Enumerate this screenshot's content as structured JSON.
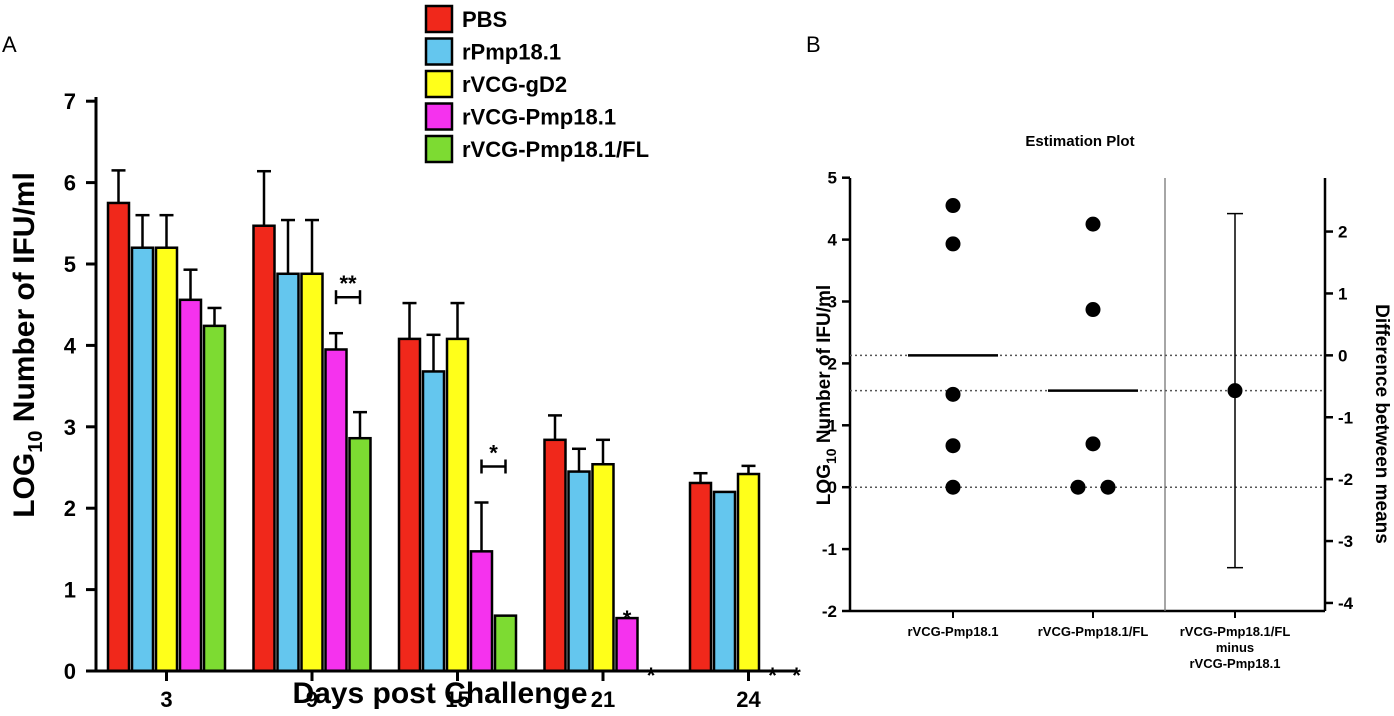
{
  "panel_labels": {
    "a": "A",
    "b": "B"
  },
  "colors": {
    "PBS": "#f0281b",
    "rPmp18.1": "#64c6ee",
    "rVCG-gD2": "#ffff1a",
    "rVCG-Pmp18.1": "#f532ee",
    "rVCG-Pmp18.1/FL": "#7ddb32"
  },
  "chart_data": [
    {
      "type": "bar",
      "title": "",
      "xlabel": "Days post Challenge",
      "ylabel_prefix": "LOG",
      "ylabel_subscript": "10",
      "ylabel_suffix": " Number of IFU/ml",
      "ylim": [
        0,
        7
      ],
      "yticks": [
        "0",
        "1",
        "2",
        "3",
        "4",
        "5",
        "6",
        "7"
      ],
      "categories": [
        "3",
        "9",
        "15",
        "21",
        "24"
      ],
      "legend": [
        "PBS",
        "rPmp18.1",
        "rVCG-gD2",
        "rVCG-Pmp18.1",
        "rVCG-Pmp18.1/FL"
      ],
      "series": [
        {
          "name": "PBS",
          "values": [
            5.75,
            5.47,
            4.08,
            2.84,
            2.31
          ],
          "errors": [
            0.4,
            0.67,
            0.44,
            0.3,
            0.12
          ]
        },
        {
          "name": "rPmp18.1",
          "values": [
            5.2,
            4.88,
            3.68,
            2.45,
            2.2
          ],
          "errors": [
            0.4,
            0.66,
            0.45,
            0.28,
            0
          ]
        },
        {
          "name": "rVCG-gD2",
          "values": [
            5.2,
            4.88,
            4.08,
            2.54,
            2.42
          ],
          "errors": [
            0.4,
            0.66,
            0.44,
            0.3,
            0.1
          ]
        },
        {
          "name": "rVCG-Pmp18.1",
          "values": [
            4.56,
            3.95,
            1.47,
            0.65,
            0
          ],
          "errors": [
            0.37,
            0.2,
            0.6,
            0,
            0
          ]
        },
        {
          "name": "rVCG-Pmp18.1/FL",
          "values": [
            4.24,
            2.86,
            0.68,
            0,
            0
          ],
          "errors": [
            0.22,
            0.32,
            0,
            0,
            0
          ]
        }
      ],
      "annotations": [
        {
          "text": "**",
          "category": "9",
          "bracket": true
        },
        {
          "text": "*",
          "category": "15",
          "bracket": true
        },
        {
          "text": "*",
          "category": "21",
          "series": "rVCG-Pmp18.1"
        },
        {
          "text": "*",
          "category": "21",
          "series": "rVCG-Pmp18.1/FL"
        },
        {
          "text": "*",
          "category": "24",
          "series": "rVCG-Pmp18.1"
        },
        {
          "text": "*",
          "category": "24",
          "series": "rVCG-Pmp18.1/FL"
        }
      ]
    },
    {
      "type": "scatter",
      "title": "Estimation Plot",
      "ylabel_prefix": "LOG",
      "ylabel_subscript": "10",
      "ylabel_suffix": " Number of IFU/ml",
      "ylabel_right": "Difference between means",
      "ylim": [
        -2,
        5
      ],
      "yticks": [
        "-2",
        "-1",
        "0",
        "1",
        "2",
        "3",
        "4",
        "5"
      ],
      "ylim_right": [
        -4.13,
        2.87
      ],
      "yticks_right": [
        "-4",
        "-3",
        "-2",
        "-1",
        "0",
        "1",
        "2"
      ],
      "groups": [
        {
          "name": "rVCG-Pmp18.1",
          "label_lines": [
            "rVCG-Pmp18.1"
          ],
          "points": [
            4.55,
            3.93,
            1.5,
            0.67,
            0
          ],
          "mean": 2.13,
          "jitter": [
            0,
            0,
            0,
            0,
            0
          ]
        },
        {
          "name": "rVCG-Pmp18.1/FL",
          "label_lines": [
            "rVCG-Pmp18.1/FL"
          ],
          "points": [
            4.25,
            2.87,
            0.7,
            0,
            0
          ],
          "mean": 1.56,
          "jitter": [
            0,
            0,
            0,
            -1,
            1
          ]
        }
      ],
      "difference": {
        "label_lines": [
          "rVCG-Pmp18.1/FL",
          "minus",
          "rVCG-Pmp18.1"
        ],
        "mean": -0.57,
        "ci_low": -3.43,
        "ci_high": 2.29
      }
    }
  ]
}
